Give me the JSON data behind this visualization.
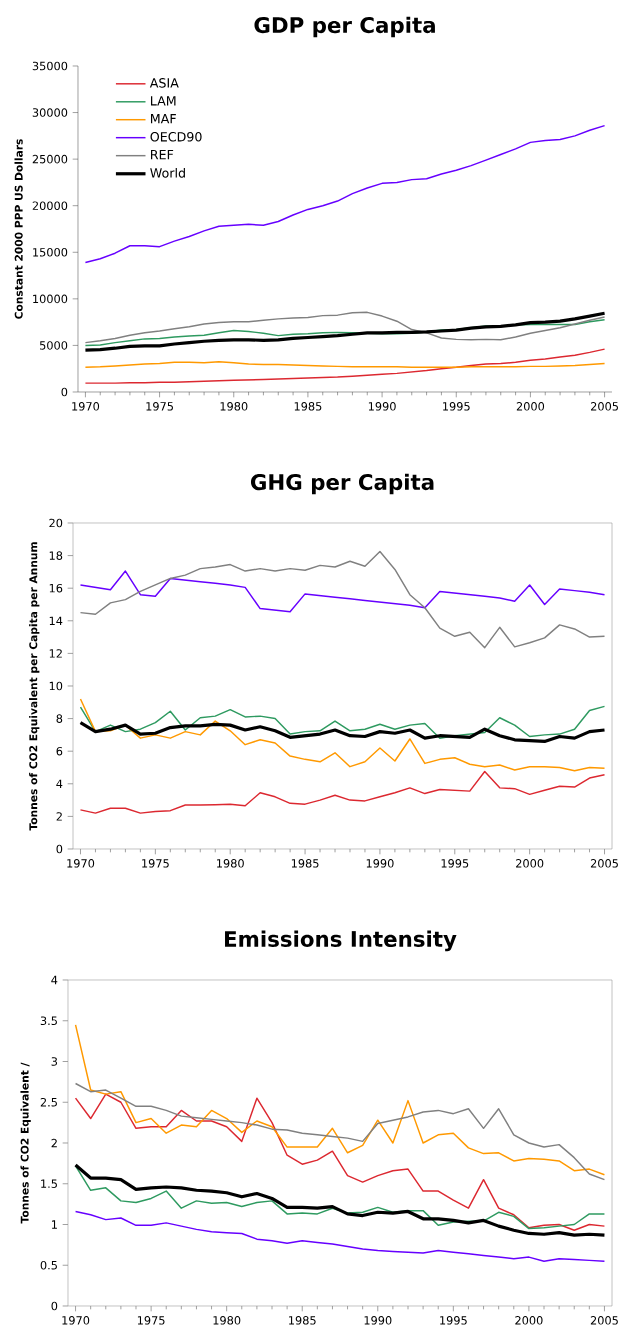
{
  "chart_data": [
    {
      "type": "line",
      "title": "GDP per Capita",
      "ylabel": "Constant 2000 PPP US Dollars",
      "legend": "top left",
      "grid": false,
      "marker": "none",
      "line_style": "solid",
      "x": [
        1970,
        1971,
        1972,
        1973,
        1974,
        1975,
        1976,
        1977,
        1978,
        1979,
        1980,
        1981,
        1982,
        1983,
        1984,
        1985,
        1986,
        1987,
        1988,
        1989,
        1990,
        1991,
        1992,
        1993,
        1994,
        1995,
        1996,
        1997,
        1998,
        1999,
        2000,
        2001,
        2002,
        2003,
        2004,
        2005
      ],
      "xlim": [
        1969.5,
        2005.5
      ],
      "xticks": [
        1970,
        1975,
        1980,
        1985,
        1990,
        1995,
        2000,
        2005
      ],
      "ylim": [
        0,
        35000
      ],
      "yticks": [
        0,
        5000,
        10000,
        15000,
        20000,
        25000,
        30000,
        35000
      ],
      "series": [
        {
          "name": "ASIA",
          "color": "#dc2830",
          "values": [
            950,
            950,
            950,
            1000,
            1000,
            1050,
            1050,
            1100,
            1150,
            1200,
            1250,
            1300,
            1350,
            1400,
            1450,
            1500,
            1550,
            1600,
            1700,
            1800,
            1900,
            2000,
            2150,
            2300,
            2500,
            2650,
            2850,
            3000,
            3050,
            3200,
            3400,
            3550,
            3750,
            3950,
            4250,
            4600
          ]
        },
        {
          "name": "LAM",
          "color": "#2e9a60",
          "values": [
            5000,
            5050,
            5300,
            5500,
            5700,
            5750,
            5900,
            6000,
            6100,
            6350,
            6600,
            6500,
            6300,
            6050,
            6200,
            6250,
            6350,
            6400,
            6350,
            6300,
            6250,
            6250,
            6300,
            6450,
            6650,
            6700,
            6900,
            7100,
            7100,
            7200,
            7250,
            7250,
            7250,
            7250,
            7550,
            7750
          ]
        },
        {
          "name": "MAF",
          "color": "#ff9900",
          "values": [
            2650,
            2700,
            2800,
            2900,
            3000,
            3050,
            3200,
            3200,
            3150,
            3250,
            3150,
            3000,
            2950,
            2950,
            2900,
            2850,
            2800,
            2750,
            2700,
            2700,
            2700,
            2700,
            2650,
            2650,
            2650,
            2650,
            2700,
            2700,
            2700,
            2700,
            2750,
            2750,
            2800,
            2850,
            2950,
            3050
          ]
        },
        {
          "name": "OECD90",
          "color": "#6600ff",
          "values": [
            13900,
            14300,
            14900,
            15700,
            15700,
            15600,
            16200,
            16700,
            17300,
            17800,
            17900,
            18000,
            17900,
            18300,
            19000,
            19600,
            20000,
            20500,
            21300,
            21900,
            22400,
            22500,
            22800,
            22900,
            23400,
            23800,
            24300,
            24900,
            25500,
            26100,
            26800,
            27000,
            27100,
            27500,
            28100,
            28600
          ]
        },
        {
          "name": "REF",
          "color": "#808080",
          "values": [
            5300,
            5500,
            5750,
            6100,
            6350,
            6550,
            6800,
            7000,
            7300,
            7450,
            7550,
            7550,
            7700,
            7850,
            7950,
            8000,
            8200,
            8250,
            8500,
            8550,
            8150,
            7600,
            6700,
            6350,
            5800,
            5650,
            5600,
            5650,
            5600,
            5900,
            6300,
            6600,
            6900,
            7300,
            7700,
            8050
          ]
        },
        {
          "name": "World",
          "color": "#000000",
          "values": [
            4500,
            4550,
            4700,
            4900,
            4950,
            4950,
            5150,
            5300,
            5450,
            5550,
            5600,
            5600,
            5550,
            5600,
            5750,
            5850,
            5950,
            6050,
            6200,
            6350,
            6350,
            6400,
            6400,
            6450,
            6550,
            6650,
            6850,
            7000,
            7050,
            7200,
            7450,
            7500,
            7600,
            7850,
            8150,
            8450
          ]
        }
      ]
    },
    {
      "type": "line",
      "title": "GHG per Capita",
      "ylabel": "Tonnes of CO2 Equivalent per Capita per Annum",
      "grid": false,
      "marker": "none",
      "line_style": "solid",
      "x": [
        1970,
        1971,
        1972,
        1973,
        1974,
        1975,
        1976,
        1977,
        1978,
        1979,
        1980,
        1981,
        1982,
        1983,
        1984,
        1985,
        1986,
        1987,
        1988,
        1989,
        1990,
        1991,
        1992,
        1993,
        1994,
        1995,
        1996,
        1997,
        1998,
        1999,
        2000,
        2001,
        2002,
        2003,
        2004,
        2005
      ],
      "xlim": [
        1969.5,
        2005.5
      ],
      "xticks": [
        1970,
        1975,
        1980,
        1985,
        1990,
        1995,
        2000,
        2005
      ],
      "ylim": [
        0,
        20
      ],
      "yticks": [
        0,
        2,
        4,
        6,
        8,
        10,
        12,
        14,
        16,
        18,
        20
      ],
      "series": [
        {
          "color": "#dc2830",
          "values": [
            2.4,
            2.2,
            2.5,
            2.5,
            2.2,
            2.3,
            2.35,
            2.7,
            2.7,
            2.72,
            2.75,
            2.65,
            3.45,
            3.2,
            2.8,
            2.75,
            3.0,
            3.3,
            3.0,
            2.95,
            3.2,
            3.45,
            3.75,
            3.4,
            3.65,
            3.6,
            3.55,
            4.75,
            3.75,
            3.7,
            3.35,
            3.6,
            3.85,
            3.8,
            4.35,
            4.55
          ]
        },
        {
          "color": "#2e9a60",
          "values": [
            8.7,
            7.2,
            7.6,
            7.2,
            7.35,
            7.75,
            8.45,
            7.3,
            8.05,
            8.15,
            8.55,
            8.1,
            8.15,
            8.0,
            7.05,
            7.2,
            7.25,
            7.85,
            7.25,
            7.35,
            7.65,
            7.35,
            7.6,
            7.7,
            6.8,
            6.95,
            7.05,
            7.15,
            8.05,
            7.6,
            6.9,
            7.0,
            7.05,
            7.35,
            8.5,
            8.75
          ]
        },
        {
          "color": "#ff9900",
          "values": [
            9.2,
            7.2,
            7.25,
            7.6,
            6.8,
            7.0,
            6.8,
            7.2,
            7.0,
            7.85,
            7.25,
            6.4,
            6.7,
            6.5,
            5.7,
            5.5,
            5.35,
            5.9,
            5.05,
            5.35,
            6.2,
            5.4,
            6.75,
            5.25,
            5.5,
            5.6,
            5.2,
            5.05,
            5.15,
            4.85,
            5.05,
            5.05,
            5.0,
            4.8,
            5.0,
            4.95
          ]
        },
        {
          "color": "#6600ff",
          "values": [
            16.2,
            16.05,
            15.9,
            17.05,
            15.6,
            15.5,
            16.6,
            16.5,
            16.4,
            16.3,
            16.2,
            16.05,
            14.75,
            14.65,
            14.55,
            15.65,
            15.55,
            15.45,
            15.35,
            15.25,
            15.15,
            15.05,
            14.95,
            14.8,
            15.8,
            15.7,
            15.6,
            15.5,
            15.4,
            15.2,
            16.2,
            15.0,
            15.95,
            15.85,
            15.75,
            15.6
          ]
        },
        {
          "color": "#808080",
          "values": [
            14.5,
            14.4,
            15.1,
            15.3,
            15.8,
            16.2,
            16.6,
            16.8,
            17.2,
            17.3,
            17.45,
            17.05,
            17.2,
            17.05,
            17.2,
            17.1,
            17.4,
            17.3,
            17.65,
            17.35,
            18.25,
            17.15,
            15.6,
            14.8,
            13.55,
            13.05,
            13.3,
            12.35,
            13.6,
            12.4,
            12.65,
            12.95,
            13.75,
            13.5,
            13.0,
            13.05
          ]
        },
        {
          "color": "#000000",
          "values": [
            7.75,
            7.2,
            7.35,
            7.6,
            7.05,
            7.1,
            7.45,
            7.55,
            7.55,
            7.65,
            7.6,
            7.3,
            7.5,
            7.25,
            6.85,
            6.95,
            7.05,
            7.3,
            6.95,
            6.9,
            7.2,
            7.1,
            7.3,
            6.8,
            6.95,
            6.9,
            6.85,
            7.35,
            6.95,
            6.7,
            6.65,
            6.6,
            6.9,
            6.8,
            7.2,
            7.3
          ]
        }
      ]
    },
    {
      "type": "line",
      "title": "Emissions Intensity",
      "ylabel": "Tonnes of CO2 Equivalent /",
      "grid": false,
      "marker": "none",
      "line_style": "solid",
      "x": [
        1970,
        1971,
        1972,
        1973,
        1974,
        1975,
        1976,
        1977,
        1978,
        1979,
        1980,
        1981,
        1982,
        1983,
        1984,
        1985,
        1986,
        1987,
        1988,
        1989,
        1990,
        1991,
        1992,
        1993,
        1994,
        1995,
        1996,
        1997,
        1998,
        1999,
        2000,
        2001,
        2002,
        2003,
        2004,
        2005
      ],
      "xlim": [
        1969.5,
        2005.5
      ],
      "xticks": [
        1970,
        1975,
        1980,
        1985,
        1990,
        1995,
        2000,
        2005
      ],
      "ylim": [
        0,
        4
      ],
      "yticks": [
        0,
        0.5,
        1,
        1.5,
        2,
        2.5,
        3,
        3.5,
        4
      ],
      "series": [
        {
          "color": "#dc2830",
          "values": [
            2.55,
            2.3,
            2.6,
            2.5,
            2.18,
            2.2,
            2.2,
            2.4,
            2.27,
            2.27,
            2.2,
            2.02,
            2.55,
            2.25,
            1.85,
            1.74,
            1.79,
            1.9,
            1.6,
            1.52,
            1.6,
            1.66,
            1.68,
            1.41,
            1.41,
            1.3,
            1.2,
            1.55,
            1.2,
            1.12,
            0.96,
            0.99,
            1.0,
            0.93,
            1.0,
            0.98
          ]
        },
        {
          "color": "#2e9a60",
          "values": [
            1.72,
            1.42,
            1.45,
            1.29,
            1.27,
            1.32,
            1.41,
            1.2,
            1.29,
            1.26,
            1.27,
            1.22,
            1.27,
            1.29,
            1.13,
            1.14,
            1.13,
            1.2,
            1.14,
            1.15,
            1.21,
            1.15,
            1.17,
            1.17,
            0.99,
            1.03,
            1.04,
            1.04,
            1.15,
            1.1,
            0.95,
            0.96,
            0.98,
            1.0,
            1.13,
            1.13
          ]
        },
        {
          "color": "#ff9900",
          "values": [
            3.45,
            2.65,
            2.6,
            2.63,
            2.25,
            2.3,
            2.12,
            2.22,
            2.2,
            2.4,
            2.3,
            2.13,
            2.27,
            2.2,
            1.95,
            1.95,
            1.95,
            2.18,
            1.88,
            1.97,
            2.28,
            2.0,
            2.52,
            2.0,
            2.1,
            2.12,
            1.94,
            1.87,
            1.88,
            1.78,
            1.81,
            1.8,
            1.78,
            1.66,
            1.68,
            1.61
          ]
        },
        {
          "color": "#6600ff",
          "values": [
            1.16,
            1.12,
            1.06,
            1.08,
            0.99,
            0.99,
            1.02,
            0.98,
            0.94,
            0.91,
            0.9,
            0.89,
            0.82,
            0.8,
            0.77,
            0.8,
            0.78,
            0.76,
            0.73,
            0.7,
            0.68,
            0.67,
            0.66,
            0.65,
            0.68,
            0.66,
            0.64,
            0.62,
            0.6,
            0.58,
            0.6,
            0.55,
            0.58,
            0.57,
            0.56,
            0.55
          ]
        },
        {
          "color": "#808080",
          "values": [
            2.73,
            2.63,
            2.65,
            2.55,
            2.45,
            2.45,
            2.4,
            2.33,
            2.31,
            2.29,
            2.27,
            2.25,
            2.22,
            2.17,
            2.16,
            2.12,
            2.1,
            2.08,
            2.06,
            2.02,
            2.24,
            2.28,
            2.32,
            2.38,
            2.4,
            2.36,
            2.42,
            2.18,
            2.42,
            2.1,
            2.0,
            1.95,
            1.98,
            1.82,
            1.62,
            1.55
          ]
        },
        {
          "color": "#000000",
          "values": [
            1.73,
            1.57,
            1.57,
            1.55,
            1.43,
            1.45,
            1.46,
            1.45,
            1.42,
            1.41,
            1.39,
            1.34,
            1.38,
            1.32,
            1.21,
            1.21,
            1.2,
            1.22,
            1.13,
            1.11,
            1.15,
            1.14,
            1.16,
            1.07,
            1.07,
            1.05,
            1.02,
            1.05,
            0.98,
            0.93,
            0.89,
            0.88,
            0.9,
            0.87,
            0.88,
            0.87
          ]
        }
      ]
    }
  ]
}
